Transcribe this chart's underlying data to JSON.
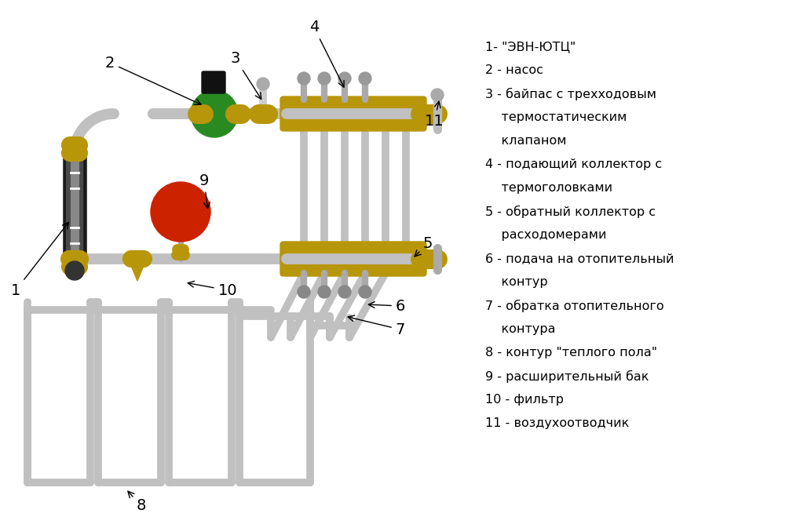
{
  "bg_color": "#ffffff",
  "pipe_color": "#c0c0c0",
  "pipe_dark": "#a8a8a8",
  "brass_color": "#b8960a",
  "green_color": "#2a8a22",
  "red_color": "#cc2200",
  "black_color": "#222222",
  "legend_texts": [
    "1- \"ЭВН-ЮТЦ\"",
    "2 - насос",
    "3 - байпас с трехходовым",
    "    термостатическим",
    "    клапаном",
    "4 - подающий коллектор с",
    "    термоголовками",
    "5 - обратный коллектор с",
    "    расходомерами",
    "6 - подача на отопительный",
    "    контур",
    "7 - обратка отопительного",
    "    контура",
    "8 - контур \"теплого пола\"",
    "9 - расширительный бак",
    "10 - фильтр",
    "11 - воздухоотводчик"
  ],
  "text_fontsize": 11.5
}
